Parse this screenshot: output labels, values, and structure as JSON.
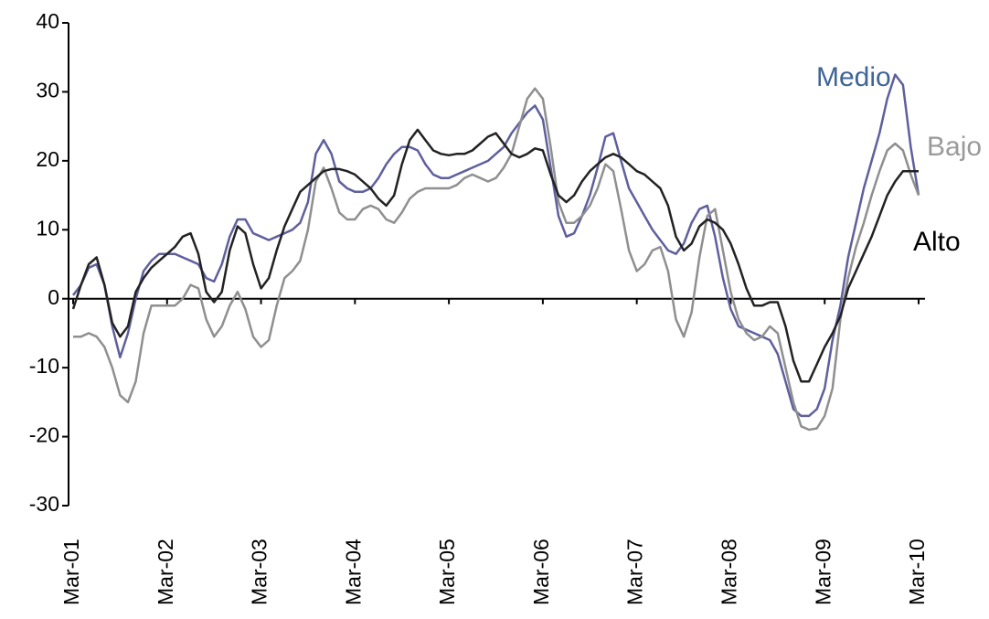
{
  "chart_data": {
    "type": "line",
    "categories": [
      "Mar-01",
      null,
      null,
      null,
      null,
      null,
      null,
      null,
      null,
      null,
      null,
      null,
      "Mar-02",
      null,
      null,
      null,
      null,
      null,
      null,
      null,
      null,
      null,
      null,
      null,
      "Mar-03",
      null,
      null,
      null,
      null,
      null,
      null,
      null,
      null,
      null,
      null,
      null,
      "Mar-04",
      null,
      null,
      null,
      null,
      null,
      null,
      null,
      null,
      null,
      null,
      null,
      "Mar-05",
      null,
      null,
      null,
      null,
      null,
      null,
      null,
      null,
      null,
      null,
      null,
      "Mar-06",
      null,
      null,
      null,
      null,
      null,
      null,
      null,
      null,
      null,
      null,
      null,
      "Mar-07",
      null,
      null,
      null,
      null,
      null,
      null,
      null,
      null,
      null,
      null,
      null,
      "Mar-08",
      null,
      null,
      null,
      null,
      null,
      null,
      null,
      null,
      null,
      null,
      null,
      "Mar-09",
      null,
      null,
      null,
      null,
      null,
      null,
      null,
      null,
      null,
      null,
      null,
      "Mar-10"
    ],
    "series": [
      {
        "name": "Medio",
        "color": "#5f5f9e",
        "label_color": "#3f6496",
        "values": [
          0.5,
          2,
          4.5,
          5,
          2,
          -4,
          -8.5,
          -5,
          0,
          4,
          5.5,
          6.5,
          6.5,
          6.5,
          6,
          5.5,
          5,
          3,
          2.5,
          5,
          9,
          11.5,
          11.5,
          9.5,
          9,
          8.5,
          9,
          9.5,
          10,
          11,
          14,
          21,
          23,
          21,
          17,
          16,
          15.5,
          15.5,
          16,
          17.5,
          19.5,
          21,
          22,
          22,
          21.5,
          19.5,
          18,
          17.5,
          17.5,
          18,
          18.5,
          19,
          19.5,
          20,
          21,
          22,
          24,
          25.5,
          27,
          28,
          26,
          19,
          12,
          9,
          9.5,
          12,
          15,
          19,
          23.5,
          24,
          20,
          16,
          14,
          12,
          10,
          8.5,
          7,
          6.5,
          8,
          11,
          13,
          13.5,
          9,
          3,
          -1.5,
          -4,
          -4.5,
          -5,
          -5.5,
          -6,
          -8,
          -12,
          -16,
          -17,
          -17,
          -16,
          -13,
          -6,
          -1,
          6,
          11,
          16,
          20,
          24,
          29,
          32.5,
          31,
          22,
          15
        ]
      },
      {
        "name": "Bajo",
        "color": "#8f8f8f",
        "label_color": "#9a9a9a",
        "values": [
          -5.5,
          -5.5,
          -5,
          -5.5,
          -7,
          -10,
          -14,
          -15,
          -12,
          -5,
          -1,
          -1,
          -1,
          -1,
          0,
          2,
          1.5,
          -3,
          -5.5,
          -4,
          -1,
          1,
          -1.5,
          -5.5,
          -7,
          -6,
          -1,
          3,
          4,
          5.5,
          10,
          17,
          19,
          16,
          12.5,
          11.5,
          11.5,
          13,
          13.5,
          13,
          11.5,
          11,
          12.5,
          14.5,
          15.5,
          16,
          16,
          16,
          16,
          16.5,
          17.5,
          18,
          17.5,
          17,
          17.5,
          19,
          21,
          25,
          29,
          30.5,
          29,
          22,
          14,
          11,
          11,
          12,
          13.5,
          16,
          19.5,
          18.5,
          13,
          7,
          4,
          5,
          7,
          7.5,
          4,
          -3,
          -5.5,
          -2,
          6,
          12,
          13,
          7,
          1,
          -3,
          -5,
          -6,
          -5.5,
          -4,
          -5,
          -10,
          -15,
          -18.5,
          -19,
          -18.8,
          -17,
          -13,
          -3,
          3,
          7.5,
          11,
          15,
          18.5,
          21.5,
          22.5,
          21.5,
          18,
          15
        ]
      },
      {
        "name": "Alto",
        "color": "#222222",
        "label_color": "#000000",
        "values": [
          -1.5,
          2,
          5,
          6,
          2,
          -3.5,
          -5.5,
          -4,
          1,
          3,
          4.5,
          5.5,
          6.5,
          7.5,
          9,
          9.5,
          6.5,
          1,
          -0.5,
          1,
          7,
          10.5,
          9.5,
          5,
          1.5,
          3,
          7,
          10.5,
          13,
          15.5,
          16.5,
          17.5,
          18.5,
          18.8,
          18.8,
          18.5,
          18,
          17,
          16,
          14.5,
          13.5,
          15,
          19.5,
          23,
          24.5,
          23,
          21.5,
          21,
          20.8,
          21,
          21,
          21.5,
          22.5,
          23.5,
          24,
          22.5,
          21,
          20.5,
          21,
          21.8,
          21.5,
          18,
          15,
          14,
          15,
          17,
          18.5,
          19.5,
          20.5,
          21,
          20.5,
          19.5,
          18.5,
          18,
          17,
          16,
          13.5,
          9,
          7,
          8,
          10.5,
          11.5,
          11,
          10,
          8,
          5,
          1.5,
          -1,
          -1,
          -0.5,
          -0.5,
          -4,
          -9,
          -12,
          -12,
          -9.5,
          -7,
          -5,
          -2.5,
          1.5,
          4,
          6.5,
          9,
          12,
          15,
          17,
          18.5,
          18.5,
          18.5
        ]
      }
    ],
    "ylim": [
      -30,
      40
    ],
    "yticks": [
      -30,
      -20,
      -10,
      0,
      10,
      20,
      30,
      40
    ]
  }
}
